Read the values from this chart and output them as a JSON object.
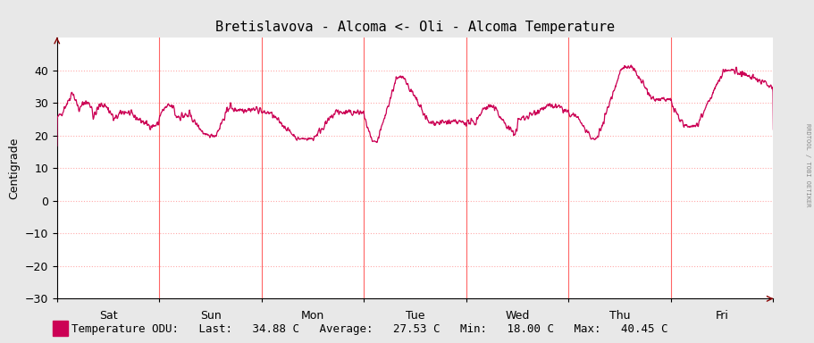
{
  "title": "Bretislavova - Alcoma <- Oli - Alcoma Temperature",
  "ylabel": "Centigrade",
  "line_color": "#cc0055",
  "bg_color": "#e8e8e8",
  "plot_bg_color": "#ffffff",
  "grid_color": "#ffaaaa",
  "vline_color": "#ff6666",
  "ylim": [
    -30,
    50
  ],
  "yticks": [
    -30,
    -20,
    -10,
    0,
    10,
    20,
    30,
    40
  ],
  "day_labels": [
    "Sat",
    "Sun",
    "Mon",
    "Tue",
    "Wed",
    "Thu",
    "Fri"
  ],
  "legend_color": "#cc0055",
  "right_label": "RRDTOOL / TOBI OETIKER",
  "title_fontsize": 11,
  "axis_fontsize": 9,
  "legend_fontsize": 9,
  "stats_last": "34.88",
  "stats_avg": "27.53",
  "stats_min": "18.00",
  "stats_max": "40.45"
}
